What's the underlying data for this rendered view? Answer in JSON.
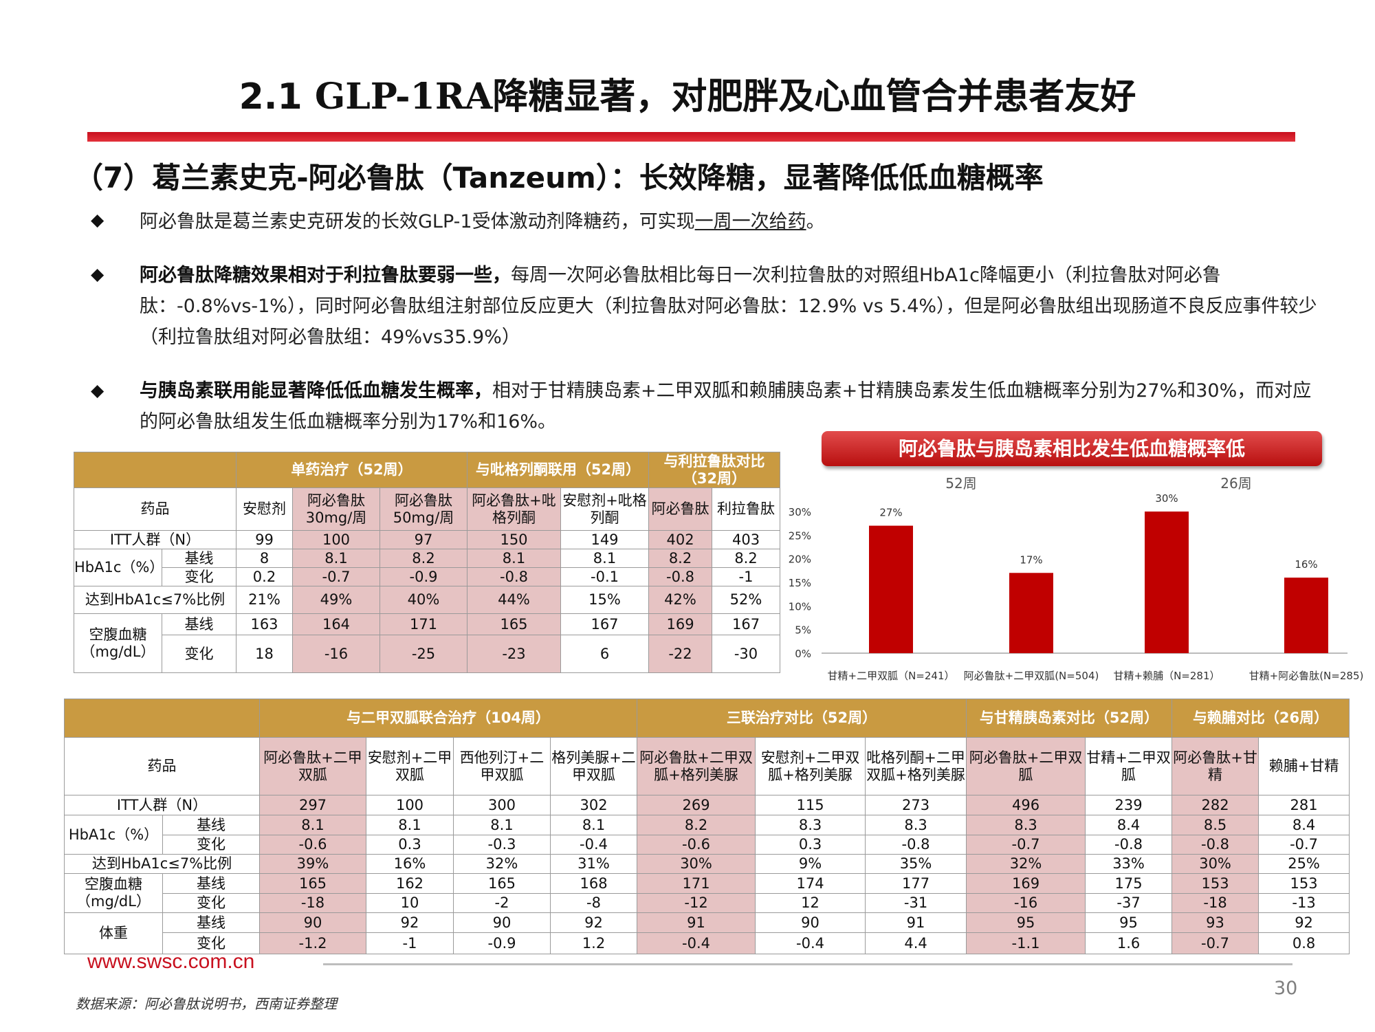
{
  "header": {
    "title_num": "2.1",
    "title_text": " GLP-1RA降糖显著，对肥胖及心血管合并患者友好"
  },
  "subtitle": "（7）葛兰素史克-阿必鲁肽（Tanzeum）：长效降糖，显著降低低血糖概率",
  "bullets": {
    "b1_text": "阿必鲁肽是葛兰素史克研发的长效GLP-1受体激动剂降糖药，可实现",
    "b1_underline": "一周一次给药",
    "b1_end": "。",
    "b2_bold": "阿必鲁肽降糖效果相对于利拉鲁肽要弱一些，",
    "b2_text": "每周一次阿必鲁肽相比每日一次利拉鲁肽的对照组HbA1c降幅更小（利拉鲁肽对阿必鲁肽：-0.8%vs-1%），同时阿必鲁肽组注射部位反应更大（利拉鲁肽对阿必鲁肽：12.9% vs 5.4%），但是阿必鲁肽组出现肠道不良反应事件较少（利拉鲁肽组对阿必鲁肽组：49%vs35.9%）",
    "b3_bold": "与胰岛素联用能显著降低低血糖发生概率，",
    "b3_text": "相对于甘精胰岛素+二甲双胍和赖脯胰岛素+甘精胰岛素发生低血糖概率分别为27%和30%，而对应的阿必鲁肽组发生低血糖概率分别为17%和16%。",
    "marker": "◆"
  },
  "table1": {
    "groups": [
      "单药治疗（52周）",
      "与吡格列酮联用（52周）",
      "与利拉鲁肽对比（32周）"
    ],
    "drug_label": "药品",
    "columns": [
      "安慰剂",
      "阿必鲁肽30mg/周",
      "阿必鲁肽50mg/周",
      "阿必鲁肽+吡格列酮",
      "安慰剂+吡格列酮",
      "阿必鲁肽",
      "利拉鲁肽"
    ],
    "labels": {
      "itt": "ITT人群（N）",
      "hba1c": "HbA1c（%）",
      "baseline": "基线",
      "change": "变化",
      "target": "达到HbA1c≤7%比例",
      "fpg": "空腹血糖（mg/dL）"
    },
    "rows": {
      "itt": [
        "99",
        "100",
        "97",
        "150",
        "149",
        "402",
        "403"
      ],
      "hba1c_base": [
        "8",
        "8.1",
        "8.2",
        "8.1",
        "8.1",
        "8.2",
        "8.2"
      ],
      "hba1c_change": [
        "0.2",
        "-0.7",
        "-0.9",
        "-0.8",
        "-0.1",
        "-0.8",
        "-1"
      ],
      "target": [
        "21%",
        "49%",
        "40%",
        "44%",
        "15%",
        "42%",
        "52%"
      ],
      "fpg_base": [
        "163",
        "164",
        "171",
        "165",
        "167",
        "169",
        "167"
      ],
      "fpg_change": [
        "18",
        "-16",
        "-25",
        "-23",
        "6",
        "-22",
        "-30"
      ]
    }
  },
  "chart": {
    "banner": "阿必鲁肽与胰岛素相比发生低血糖概率低",
    "accent_color": "#c00000"
  },
  "chart_data": {
    "type": "bar",
    "groups": [
      "52周",
      "26周"
    ],
    "categories": [
      "甘精+二甲双胍（N=241）",
      "阿必鲁肽+二甲双胍(N=504)",
      "甘精+赖脯（N=281）",
      "甘精+阿必鲁肽(N=285)"
    ],
    "values": [
      27,
      17,
      30,
      16
    ],
    "value_labels": [
      "27%",
      "17%",
      "30%",
      "16%"
    ],
    "yticks": [
      "0%",
      "5%",
      "10%",
      "15%",
      "20%",
      "25%",
      "30%"
    ],
    "ylim": [
      0,
      30
    ],
    "grid": false
  },
  "table2": {
    "groups": [
      "与二甲双胍联合治疗（104周）",
      "三联治疗对比（52周）",
      "与甘精胰岛素对比（52周）",
      "与赖脯对比（26周）"
    ],
    "drug_label": "药品",
    "columns": [
      "阿必鲁肽+二甲双胍",
      "安慰剂+二甲双胍",
      "西他列汀+二甲双胍",
      "格列美脲+二甲双胍",
      "阿必鲁肽+二甲双胍+格列美脲",
      "安慰剂+二甲双胍+格列美脲",
      "吡格列酮+二甲双胍+格列美脲",
      "阿必鲁肽+二甲双胍",
      "甘精+二甲双胍",
      "阿必鲁肽+甘精",
      "赖脯+甘精"
    ],
    "labels": {
      "itt": "ITT人群（N）",
      "hba1c": "HbA1c（%）",
      "baseline": "基线",
      "change": "变化",
      "target": "达到HbA1c≤7%比例",
      "fpg": "空腹血糖（mg/dL）",
      "weight": "体重"
    },
    "rows": {
      "itt": [
        "297",
        "100",
        "300",
        "302",
        "269",
        "115",
        "273",
        "496",
        "239",
        "282",
        "281"
      ],
      "hba1c_base": [
        "8.1",
        "8.1",
        "8.1",
        "8.1",
        "8.2",
        "8.3",
        "8.3",
        "8.3",
        "8.4",
        "8.5",
        "8.4"
      ],
      "hba1c_change": [
        "-0.6",
        "0.3",
        "-0.3",
        "-0.4",
        "-0.6",
        "0.3",
        "-0.8",
        "-0.7",
        "-0.8",
        "-0.8",
        "-0.7"
      ],
      "target": [
        "39%",
        "16%",
        "32%",
        "31%",
        "30%",
        "9%",
        "35%",
        "32%",
        "33%",
        "30%",
        "25%"
      ],
      "fpg_base": [
        "165",
        "162",
        "165",
        "168",
        "171",
        "174",
        "177",
        "169",
        "175",
        "153",
        "153"
      ],
      "fpg_change": [
        "-18",
        "10",
        "-2",
        "-8",
        "-12",
        "12",
        "-31",
        "-16",
        "-37",
        "-18",
        "-13"
      ],
      "weight_base": [
        "90",
        "92",
        "90",
        "92",
        "91",
        "90",
        "91",
        "95",
        "95",
        "93",
        "92"
      ],
      "weight_change": [
        "-1.2",
        "-1",
        "-0.9",
        "1.2",
        "-0.4",
        "-0.4",
        "4.4",
        "-1.1",
        "1.6",
        "-0.7",
        "0.8"
      ]
    }
  },
  "footer": {
    "url": "www.swsc.com.cn",
    "page": "30",
    "source": "数据来源：阿必鲁肽说明书，西南证券整理"
  }
}
